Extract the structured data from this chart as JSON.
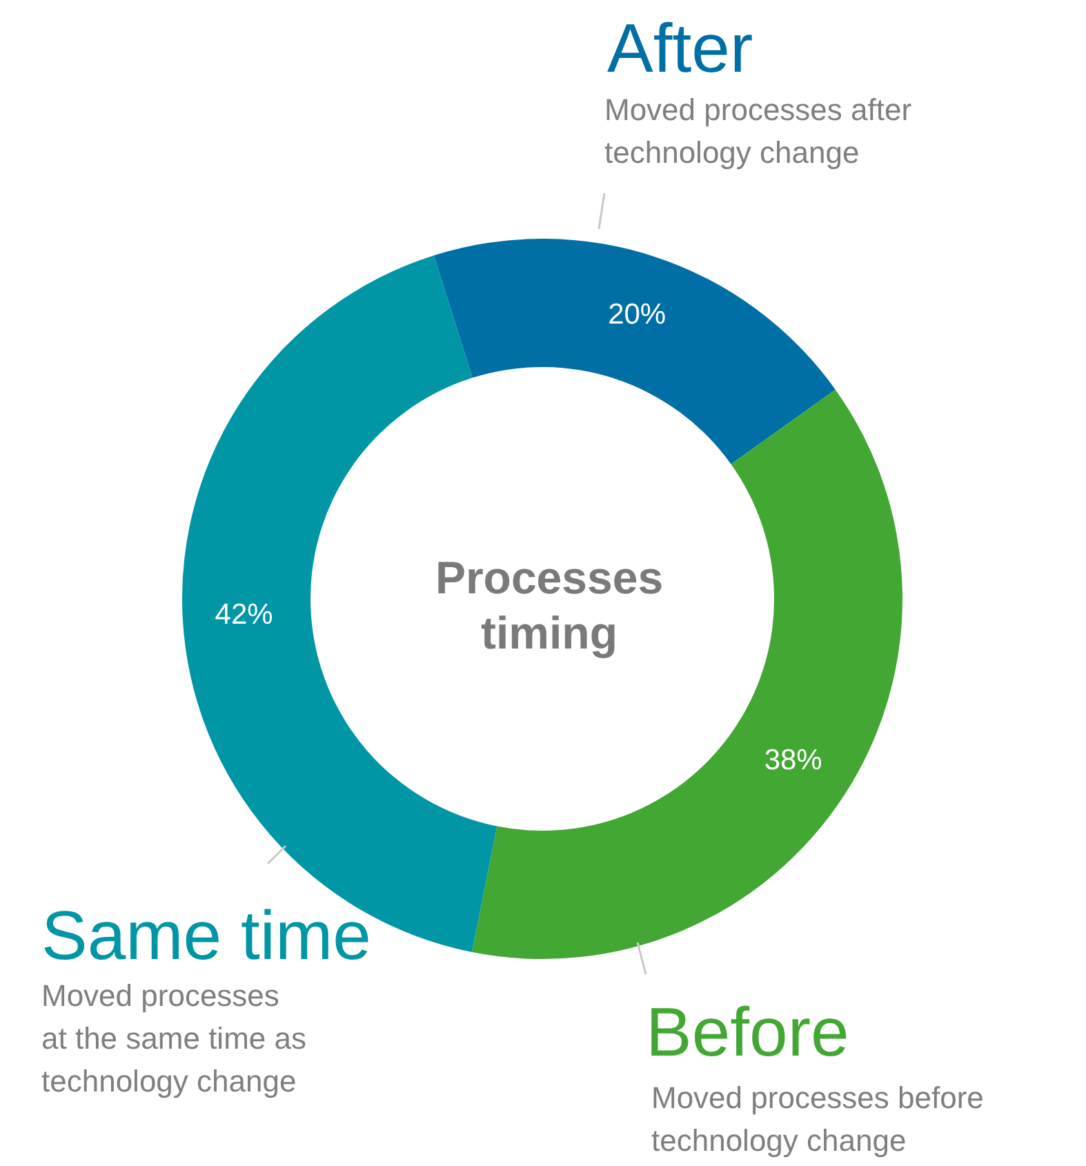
{
  "chart_data": {
    "type": "donut",
    "title": "Processes timing",
    "categories": [
      "After",
      "Before",
      "Same time"
    ],
    "values": [
      20,
      38,
      42
    ],
    "colors": [
      "#006fa6",
      "#43a733",
      "#0096a6"
    ],
    "value_labels": [
      "20%",
      "38%",
      "42%"
    ],
    "annotations": [
      "Moved processes after\ntechnology change",
      "Moved processes before\ntechnology change",
      "Moved processes\nat the same time as\ntechnology change"
    ]
  }
}
